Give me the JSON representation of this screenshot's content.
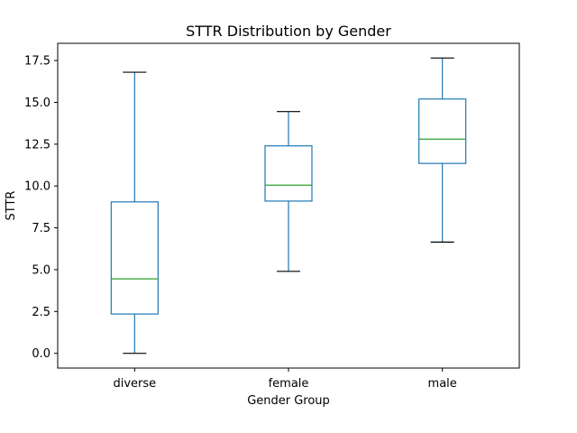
{
  "chart_data": {
    "type": "box",
    "title": "STTR Distribution by Gender",
    "xlabel": "Gender Group",
    "ylabel": "STTR",
    "categories": [
      "diverse",
      "female",
      "male"
    ],
    "boxes": [
      {
        "category": "diverse",
        "whisker_low": 0.0,
        "q1": 2.35,
        "median": 4.45,
        "q3": 9.05,
        "whisker_high": 16.8
      },
      {
        "category": "female",
        "whisker_low": 4.9,
        "q1": 9.1,
        "median": 10.05,
        "q3": 12.4,
        "whisker_high": 14.45
      },
      {
        "category": "male",
        "whisker_low": 6.65,
        "q1": 11.35,
        "median": 12.8,
        "q3": 15.2,
        "whisker_high": 17.65
      }
    ],
    "yticks": [
      0.0,
      2.5,
      5.0,
      7.5,
      10.0,
      12.5,
      15.0,
      17.5
    ],
    "ytick_labels": [
      "0.0",
      "2.5",
      "5.0",
      "7.5",
      "10.0",
      "12.5",
      "15.0",
      "17.5"
    ],
    "ylim": [
      -0.88,
      18.53
    ],
    "grid": false,
    "colors": {
      "box": "#1f77b4",
      "median": "#2ca02c",
      "caps": "#000000"
    }
  }
}
